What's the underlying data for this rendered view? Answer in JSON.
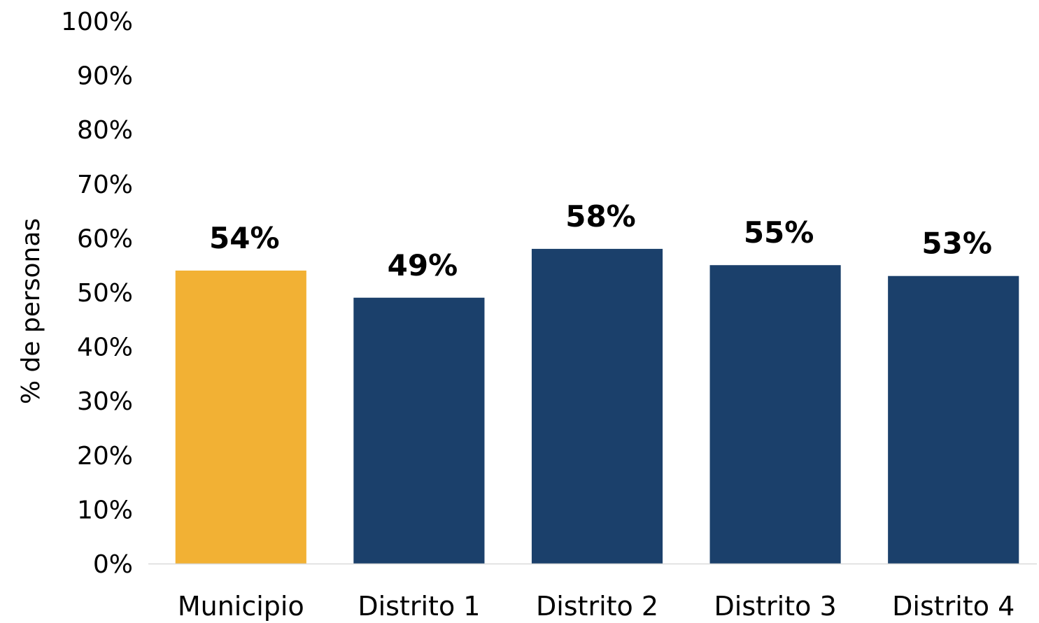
{
  "chart_data": {
    "type": "bar",
    "title": "",
    "xlabel": "",
    "ylabel": "% de personas",
    "ylim": [
      0,
      100
    ],
    "yticks": [
      "0%",
      "10%",
      "20%",
      "30%",
      "40%",
      "50%",
      "60%",
      "70%",
      "80%",
      "90%",
      "100%"
    ],
    "grid": false,
    "legend": "none",
    "categories": [
      "Municipio",
      "Distrito 1",
      "Distrito 2",
      "Distrito 3",
      "Distrito 4"
    ],
    "values": [
      54,
      49,
      58,
      55,
      53
    ],
    "value_labels": [
      "54%",
      "49%",
      "58%",
      "55%",
      "53%"
    ],
    "colors": [
      "#F2B134",
      "#1B406B",
      "#1B406B",
      "#1B406B",
      "#1B406B"
    ],
    "axis_line_color": "#D9D9D9"
  }
}
